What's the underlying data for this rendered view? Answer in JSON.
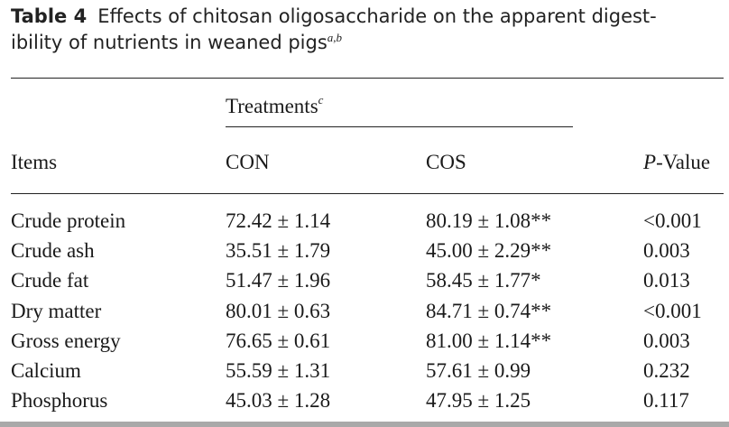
{
  "caption": {
    "label": "Table 4",
    "text_line1": "Effects of chitosan oligosaccharide on the apparent digest-",
    "text_line2": "ibility of nutrients in weaned pigs",
    "superscript": "a,b"
  },
  "table": {
    "group_header": {
      "label": "Treatments",
      "superscript": "c"
    },
    "columns": {
      "items": "Items",
      "con": "CON",
      "cos": "COS",
      "pvalue_italic": "P",
      "pvalue_rest": "-Value"
    },
    "rows": [
      {
        "item": "Crude protein",
        "con": "72.42 ± 1.14",
        "cos": "80.19 ± 1.08**",
        "p": "<0.001"
      },
      {
        "item": "Crude ash",
        "con": "35.51 ± 1.79",
        "cos": "45.00 ± 2.29**",
        "p": "0.003"
      },
      {
        "item": "Crude fat",
        "con": "51.47 ± 1.96",
        "cos": "58.45 ± 1.77*",
        "p": "0.013"
      },
      {
        "item": "Dry matter",
        "con": "80.01 ± 0.63",
        "cos": "84.71 ± 0.74**",
        "p": "<0.001"
      },
      {
        "item": "Gross energy",
        "con": "76.65 ± 0.61",
        "cos": "81.00 ± 1.14**",
        "p": "0.003"
      },
      {
        "item": "Calcium",
        "con": "55.59 ± 1.31",
        "cos": "57.61 ± 0.99",
        "p": "0.232"
      },
      {
        "item": "Phosphorus",
        "con": "45.03 ± 1.28",
        "cos": "47.95 ± 1.25",
        "p": "0.117"
      }
    ]
  }
}
